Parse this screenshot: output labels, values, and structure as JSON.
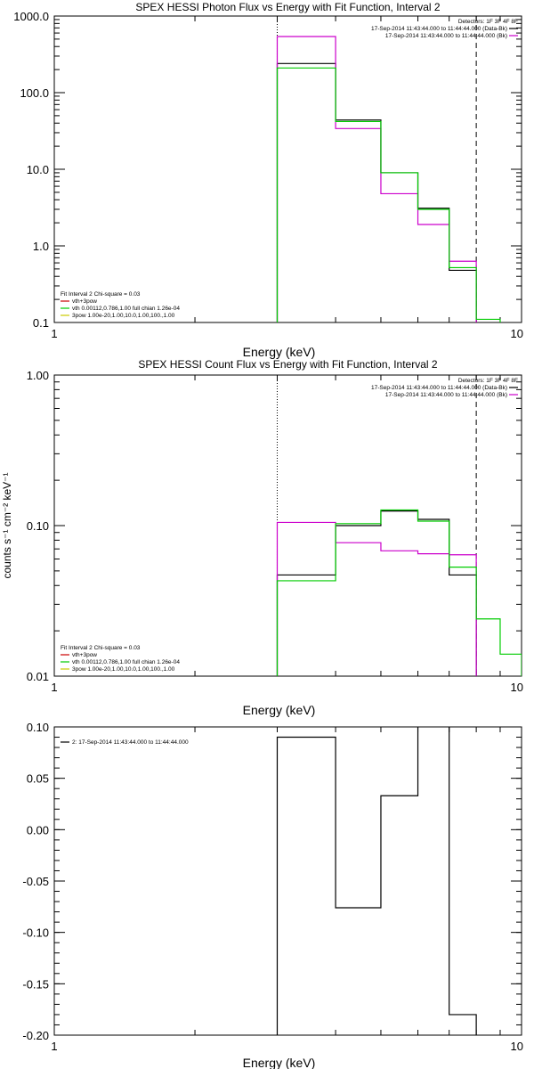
{
  "chart_data": [
    {
      "type": "line",
      "title": "SPEX HESSI Photon Flux vs Energy with Fit Function, Interval 2",
      "xlabel": "Energy (keV)",
      "ylabel": "",
      "xscale": "log",
      "yscale": "log",
      "xlim": [
        1,
        10
      ],
      "ylim": [
        0.1,
        1000
      ],
      "x_ticks": [
        "1",
        "10"
      ],
      "y_ticks": [
        "0.1",
        "1.0",
        "10.0",
        "100.0",
        "1000.0"
      ],
      "x_tick_values": [
        1,
        10
      ],
      "y_tick_values": [
        0.1,
        1,
        10,
        100,
        1000
      ],
      "detectors_label": "Detectors: 1F 3F 4F 8F",
      "legend_right": [
        {
          "text": "17-Sep-2014 11:43:44.000 to 11:44:44.000 (Data-Bk)",
          "color": "#000000"
        },
        {
          "text": "17-Sep-2014 11:43:44.000 to 11:44:44.000 (Bk)",
          "color": "#cc00cc"
        }
      ],
      "legend_left": [
        {
          "text": "Fit Interval 2   Chi-square = 0.03",
          "color": ""
        },
        {
          "text": "vth+3pow",
          "color": "#cc0000"
        },
        {
          "text": "vth 0.00112,0.786,1.00  full chian 1.26e-04",
          "color": "#00cc00"
        },
        {
          "text": "3pow 1.00e-20,1.00,10.0,1.00,100.,1.00",
          "color": "#cccc00"
        }
      ],
      "vlines": [
        {
          "x": 3,
          "style": "dotted"
        },
        {
          "x": 8,
          "style": "dashed"
        }
      ],
      "bin_edges": [
        3,
        4,
        5,
        6,
        7,
        8,
        9
      ],
      "series": [
        {
          "name": "Data-Bk",
          "color": "#000000",
          "values": [
            240,
            44,
            9,
            3.1,
            0.48
          ]
        },
        {
          "name": "Bk",
          "color": "#cc00cc",
          "values": [
            540,
            34,
            4.8,
            1.9,
            0.63
          ]
        },
        {
          "name": "vth",
          "color": "#00cc00",
          "values": [
            210,
            42,
            9,
            3.0,
            0.52,
            0.11
          ]
        }
      ]
    },
    {
      "type": "line",
      "title": "SPEX HESSI Count Flux vs Energy with Fit Function, Interval 2",
      "xlabel": "Energy (keV)",
      "ylabel": "counts s⁻¹ cm⁻² keV⁻¹",
      "xscale": "log",
      "yscale": "log",
      "xlim": [
        1,
        10
      ],
      "ylim": [
        0.01,
        1
      ],
      "x_ticks": [
        "1",
        "10"
      ],
      "y_ticks": [
        "0.01",
        "0.10",
        "1.00"
      ],
      "x_tick_values": [
        1,
        10
      ],
      "y_tick_values": [
        0.01,
        0.1,
        1
      ],
      "detectors_label": "Detectors: 1F 3F 4F 8F",
      "legend_right": [
        {
          "text": "17-Sep-2014 11:43:44.000 to 11:44:44.000 (Data-Bk)",
          "color": "#000000"
        },
        {
          "text": "17-Sep-2014 11:43:44.000 to 11:44:44.000 (Bk)",
          "color": "#cc00cc"
        }
      ],
      "legend_left": [
        {
          "text": "Fit Interval 2   Chi-square = 0.03",
          "color": ""
        },
        {
          "text": "vth+3pow",
          "color": "#cc0000"
        },
        {
          "text": "vth 0.00112,0.786,1.00  full chian 1.26e-04",
          "color": "#00cc00"
        },
        {
          "text": "3pow 1.00e-20,1.00,10.0,1.00,100.,1.00",
          "color": "#cccc00"
        }
      ],
      "vlines": [
        {
          "x": 3,
          "style": "dotted"
        },
        {
          "x": 8,
          "style": "dashed"
        }
      ],
      "bin_edges": [
        3,
        4,
        5,
        6,
        7,
        8,
        9,
        10
      ],
      "series": [
        {
          "name": "Data-Bk",
          "color": "#000000",
          "values": [
            0.047,
            0.1,
            0.125,
            0.11,
            0.047
          ]
        },
        {
          "name": "Bk",
          "color": "#cc00cc",
          "values": [
            0.105,
            0.077,
            0.068,
            0.065,
            0.064
          ]
        },
        {
          "name": "vth",
          "color": "#00cc00",
          "values": [
            0.043,
            0.103,
            0.127,
            0.107,
            0.053,
            0.024,
            0.014
          ]
        }
      ]
    },
    {
      "type": "line",
      "title": "",
      "xlabel": "Energy (keV)",
      "ylabel": "",
      "xscale": "log",
      "yscale": "linear",
      "xlim": [
        1,
        10
      ],
      "ylim": [
        -0.2,
        0.1
      ],
      "x_ticks": [
        "1",
        "10"
      ],
      "y_ticks": [
        "-0.20",
        "-0.15",
        "-0.10",
        "-0.05",
        "0.00",
        "0.05",
        "0.10"
      ],
      "x_tick_values": [
        1,
        10
      ],
      "y_tick_values": [
        -0.2,
        -0.15,
        -0.1,
        -0.05,
        0,
        0.05,
        0.1
      ],
      "detectors_label": "",
      "legend_right": [],
      "legend_left": [
        {
          "text": "2: 17-Sep-2014 11:43:44.000 to 11:44:44.000",
          "color": "#000000"
        }
      ],
      "vlines": [],
      "bin_edges": [
        3,
        4,
        5,
        6,
        7,
        8
      ],
      "series": [
        {
          "name": "2: 17-Sep-2014 11:43:44.000 to 11:44:44.000",
          "color": "#000000",
          "values": [
            0.09,
            -0.076,
            0.033,
            0.12,
            -0.18
          ]
        }
      ]
    }
  ]
}
